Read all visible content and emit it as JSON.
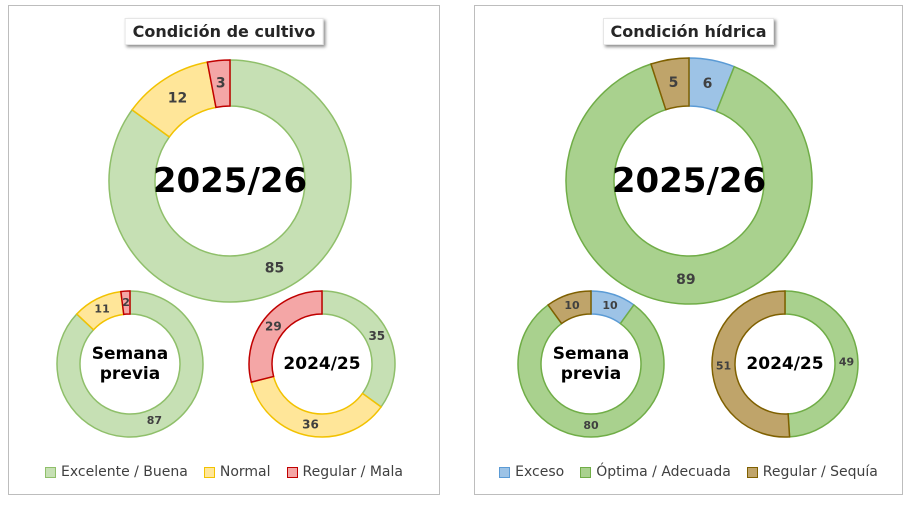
{
  "chart_data": [
    {
      "type": "donut",
      "title": "Condición de cultivo",
      "categories": [
        "Excelente / Buena",
        "Normal",
        "Regular / Mala"
      ],
      "colors": {
        "fill": [
          "#c6e0b4",
          "#ffe699",
          "#f4a6a6"
        ],
        "stroke": [
          "#8fbf6a",
          "#f2c200",
          "#c00000"
        ]
      },
      "rings": [
        {
          "label": "2025/26",
          "values": [
            85,
            12,
            3
          ]
        },
        {
          "label": "Semana previa",
          "values": [
            87,
            11,
            2
          ]
        },
        {
          "label": "2024/25",
          "values": [
            35,
            36,
            29
          ]
        }
      ],
      "legend_position": "bottom"
    },
    {
      "type": "donut",
      "title": "Condición hídrica",
      "categories": [
        "Exceso",
        "Óptima / Adecuada",
        "Regular / Sequía"
      ],
      "colors": {
        "fill": [
          "#9dc3e6",
          "#a9d18e",
          "#bfa46a"
        ],
        "stroke": [
          "#5b9bd5",
          "#70ad47",
          "#7f6000"
        ]
      },
      "rings": [
        {
          "label": "2025/26",
          "values": [
            6,
            89,
            5
          ]
        },
        {
          "label": "Semana previa",
          "values": [
            10,
            80,
            10
          ]
        },
        {
          "label": "2024/25",
          "values": [
            0,
            49,
            51
          ]
        }
      ],
      "legend_position": "bottom"
    }
  ]
}
